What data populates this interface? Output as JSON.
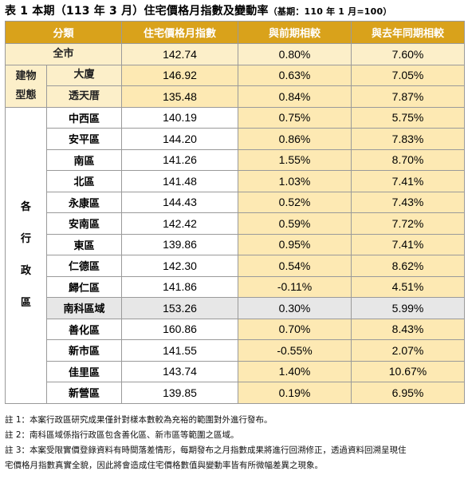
{
  "title": {
    "main": "表 1 本期（113 年 3 月）住宅價格月指數及變動率",
    "base": "（基期：110 年 1 月=100）"
  },
  "headers": {
    "category": "分類",
    "index": "住宅價格月指數",
    "mom": "與前期相較",
    "yoy": "與去年同期相較"
  },
  "city": {
    "label": "全市",
    "index": "142.74",
    "mom": "0.80%",
    "yoy": "7.60%"
  },
  "building_type": {
    "group_label_line1": "建物",
    "group_label_line2": "型態",
    "rows": [
      {
        "label": "大廈",
        "index": "146.92",
        "mom": "0.63%",
        "yoy": "7.05%"
      },
      {
        "label": "透天厝",
        "index": "135.48",
        "mom": "0.84%",
        "yoy": "7.87%"
      }
    ]
  },
  "districts": {
    "group_label": [
      "各",
      "行",
      "政",
      "區"
    ],
    "rows": [
      {
        "label": "中西區",
        "index": "140.19",
        "mom": "0.75%",
        "yoy": "5.75%"
      },
      {
        "label": "安平區",
        "index": "144.20",
        "mom": "0.86%",
        "yoy": "7.83%"
      },
      {
        "label": "南區",
        "index": "141.26",
        "mom": "1.55%",
        "yoy": "8.70%"
      },
      {
        "label": "北區",
        "index": "141.48",
        "mom": "1.03%",
        "yoy": "7.41%"
      },
      {
        "label": "永康區",
        "index": "144.43",
        "mom": "0.52%",
        "yoy": "7.43%"
      },
      {
        "label": "安南區",
        "index": "142.42",
        "mom": "0.59%",
        "yoy": "7.72%"
      },
      {
        "label": "東區",
        "index": "139.86",
        "mom": "0.95%",
        "yoy": "7.41%"
      },
      {
        "label": "仁德區",
        "index": "142.30",
        "mom": "0.54%",
        "yoy": "8.62%"
      },
      {
        "label": "歸仁區",
        "index": "141.86",
        "mom": "-0.11%",
        "yoy": "4.51%"
      },
      {
        "label": "南科區域",
        "index": "153.26",
        "mom": "0.30%",
        "yoy": "5.99%",
        "highlight": true
      },
      {
        "label": "善化區",
        "index": "160.86",
        "mom": "0.70%",
        "yoy": "8.43%"
      },
      {
        "label": "新市區",
        "index": "141.55",
        "mom": "-0.55%",
        "yoy": "2.07%"
      },
      {
        "label": "佳里區",
        "index": "143.74",
        "mom": "1.40%",
        "yoy": "10.67%"
      },
      {
        "label": "新營區",
        "index": "139.85",
        "mom": "0.19%",
        "yoy": "6.95%"
      }
    ]
  },
  "notes": [
    "註 1：本案行政區研究成果僅針對樣本數較為充裕的範圍對外進行發布。",
    "註 2：南科區域係指行政區包含善化區、新市區等範圍之區域。",
    "註 3：本案受限實價登錄資料有時間落差情形，每期發布之月指數成果將進行回溯修正，透過資料回溯呈現住",
    "宅價格月指數真實全貌，因此將會造成住宅價格數值與變動率皆有所微幅差異之現象。"
  ],
  "colors": {
    "header_bg": "#d9a21b",
    "category_bg": "#fcefc9",
    "data_bg": "#fde9b3",
    "highlight_bg": "#e7e7e7"
  }
}
